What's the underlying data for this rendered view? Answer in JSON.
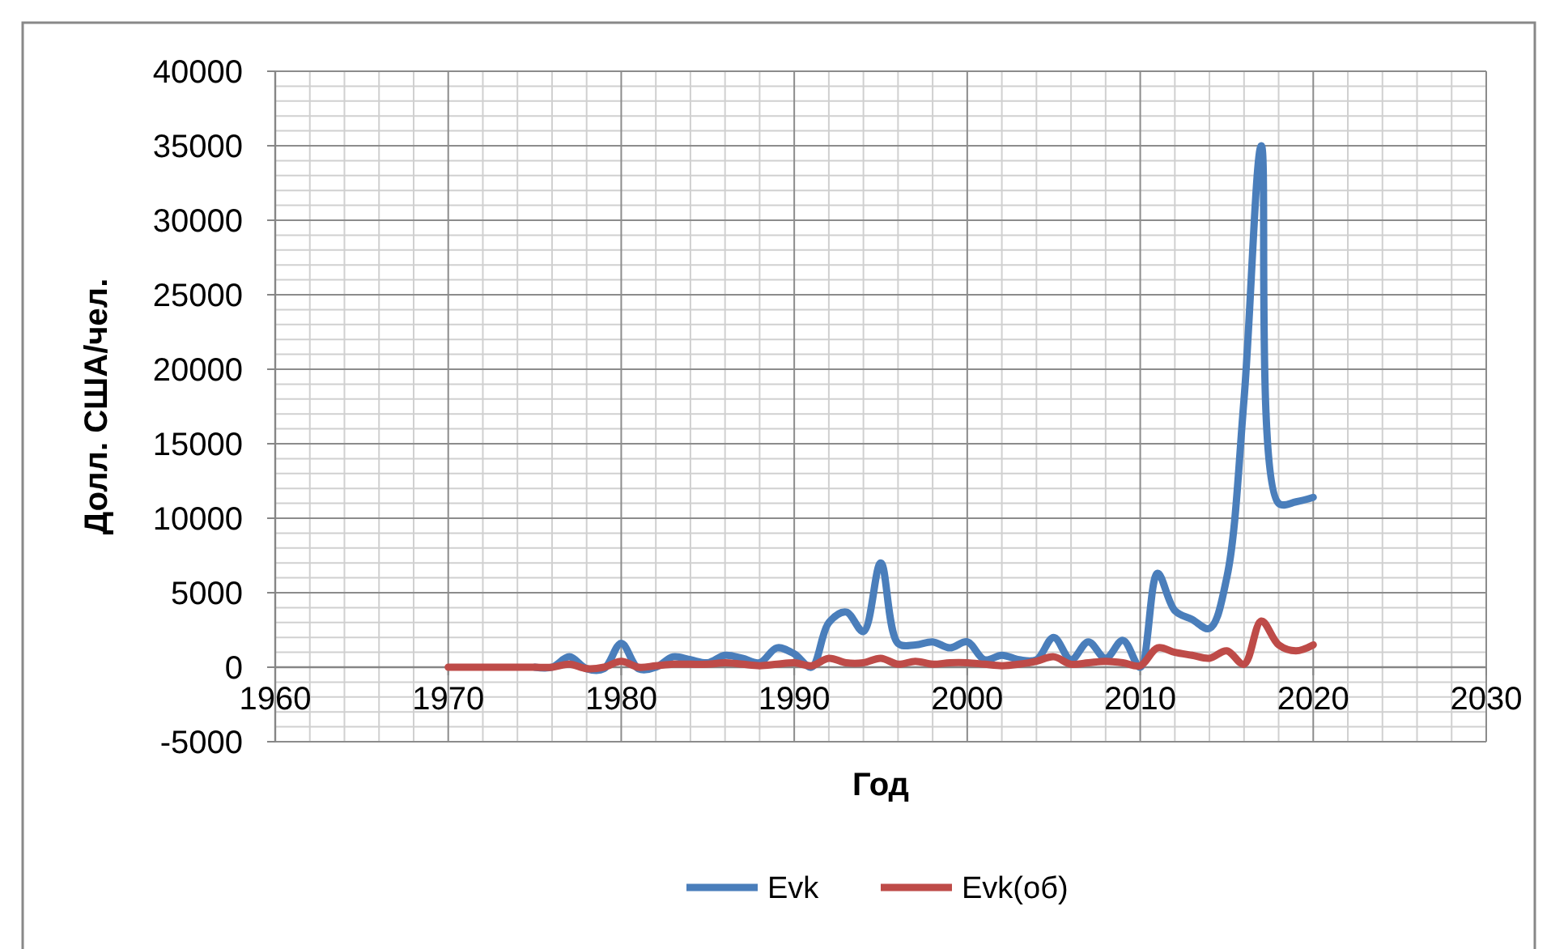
{
  "chart_data": {
    "type": "line",
    "xlabel": "Год",
    "ylabel": "Долл. США/чел.",
    "x": [
      1970,
      1971,
      1972,
      1973,
      1974,
      1975,
      1976,
      1977,
      1978,
      1979,
      1980,
      1981,
      1982,
      1983,
      1984,
      1985,
      1986,
      1987,
      1988,
      1989,
      1990,
      1991,
      1992,
      1993,
      1994,
      1995,
      1996,
      1997,
      1998,
      1999,
      2000,
      2001,
      2002,
      2003,
      2004,
      2005,
      2006,
      2007,
      2008,
      2009,
      2010,
      2011,
      2012,
      2013,
      2014,
      2015,
      2016,
      2017,
      2018,
      2019,
      2020
    ],
    "series": [
      {
        "name": "Evk",
        "color": "#4a7ebb",
        "values": [
          null,
          null,
          null,
          null,
          null,
          0,
          0,
          700,
          -100,
          -100,
          1600,
          -100,
          0,
          700,
          500,
          300,
          800,
          600,
          300,
          1300,
          900,
          0,
          3000,
          3700,
          2400,
          7000,
          1600,
          1500,
          1700,
          1300,
          1700,
          500,
          800,
          500,
          500,
          2000,
          500,
          1700,
          600,
          1800,
          0,
          6300,
          3800,
          3200,
          2600,
          6000,
          18000,
          35000,
          11000,
          11100,
          11400
        ]
      },
      {
        "name": "Evk(об)",
        "color": "#be4b48",
        "values": [
          0,
          0,
          0,
          0,
          0,
          0,
          0,
          200,
          -100,
          0,
          400,
          0,
          100,
          200,
          200,
          200,
          300,
          200,
          100,
          200,
          300,
          100,
          600,
          300,
          300,
          600,
          200,
          400,
          200,
          300,
          300,
          200,
          100,
          200,
          400,
          700,
          200,
          300,
          400,
          300,
          100,
          1300,
          1000,
          800,
          600,
          1100,
          200,
          3100,
          1500,
          1100,
          1500
        ]
      }
    ],
    "xlim": [
      1960,
      2030
    ],
    "xticks": [
      1960,
      1970,
      1980,
      1990,
      2000,
      2010,
      2020,
      2030
    ],
    "ylim": [
      -5000,
      40000
    ],
    "yticks": [
      -5000,
      0,
      5000,
      10000,
      15000,
      20000,
      25000,
      30000,
      35000,
      40000
    ],
    "grid": true,
    "legend": "bottom",
    "marker": "none",
    "line_style": "solid"
  }
}
